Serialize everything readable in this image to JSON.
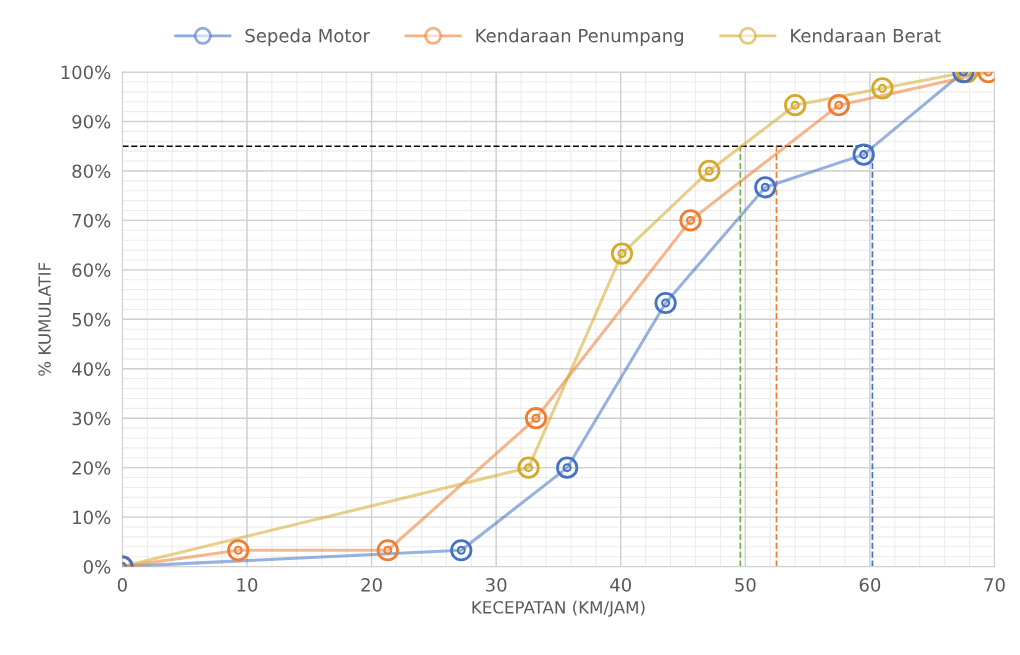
{
  "chart_data": {
    "type": "line",
    "xlabel": "KECEPATAN (KM/JAM)",
    "ylabel": "% KUMULATIF",
    "xlim": [
      0,
      70
    ],
    "xticks": [
      0,
      10,
      20,
      30,
      40,
      50,
      60,
      70
    ],
    "ylim": [
      0,
      100
    ],
    "yticks": [
      {
        "value": 0,
        "label": "0%"
      },
      {
        "value": 10,
        "label": "10%"
      },
      {
        "value": 20,
        "label": "20%"
      },
      {
        "value": 30,
        "label": "30%"
      },
      {
        "value": 40,
        "label": "40%"
      },
      {
        "value": 50,
        "label": "50%"
      },
      {
        "value": 60,
        "label": "60%"
      },
      {
        "value": 70,
        "label": "70%"
      },
      {
        "value": 80,
        "label": "80%"
      },
      {
        "value": 90,
        "label": "90%"
      },
      {
        "value": 100,
        "label": "100%"
      }
    ],
    "grid": true,
    "legend": "top",
    "marker": "circle",
    "line_style": "solid",
    "series": [
      {
        "name": "Sepeda Motor",
        "color": "#4472c4",
        "x": [
          0,
          27.2,
          35.7,
          43.6,
          51.6,
          59.5,
          67.5
        ],
        "values": [
          0,
          3.3,
          20,
          53.3,
          76.7,
          83.3,
          100
        ]
      },
      {
        "name": "Kendaraan Penumpang",
        "color": "#ed7d31",
        "x": [
          0,
          9.3,
          21.3,
          33.2,
          45.6,
          57.5,
          69.5
        ],
        "values": [
          0,
          3.3,
          3.3,
          30,
          70,
          93.3,
          100
        ]
      },
      {
        "name": "Kendaraan Berat",
        "color": "#d4a92a",
        "x": [
          0,
          32.6,
          40.1,
          47.1,
          54.0,
          61.0,
          67.8
        ],
        "values": [
          0,
          20,
          63.3,
          80,
          93.3,
          96.7,
          100
        ]
      }
    ],
    "ref_lines": [
      {
        "axis": "y",
        "value": 85,
        "color": "#000000",
        "line_style": "dashed"
      },
      {
        "axis": "x",
        "value": 49.6,
        "color": "#70ad47",
        "line_style": "dashed"
      },
      {
        "axis": "x",
        "value": 52.5,
        "color": "#ed7d31",
        "line_style": "dashed"
      },
      {
        "axis": "x",
        "value": 60.2,
        "color": "#4472c4",
        "line_style": "dashed"
      }
    ]
  }
}
